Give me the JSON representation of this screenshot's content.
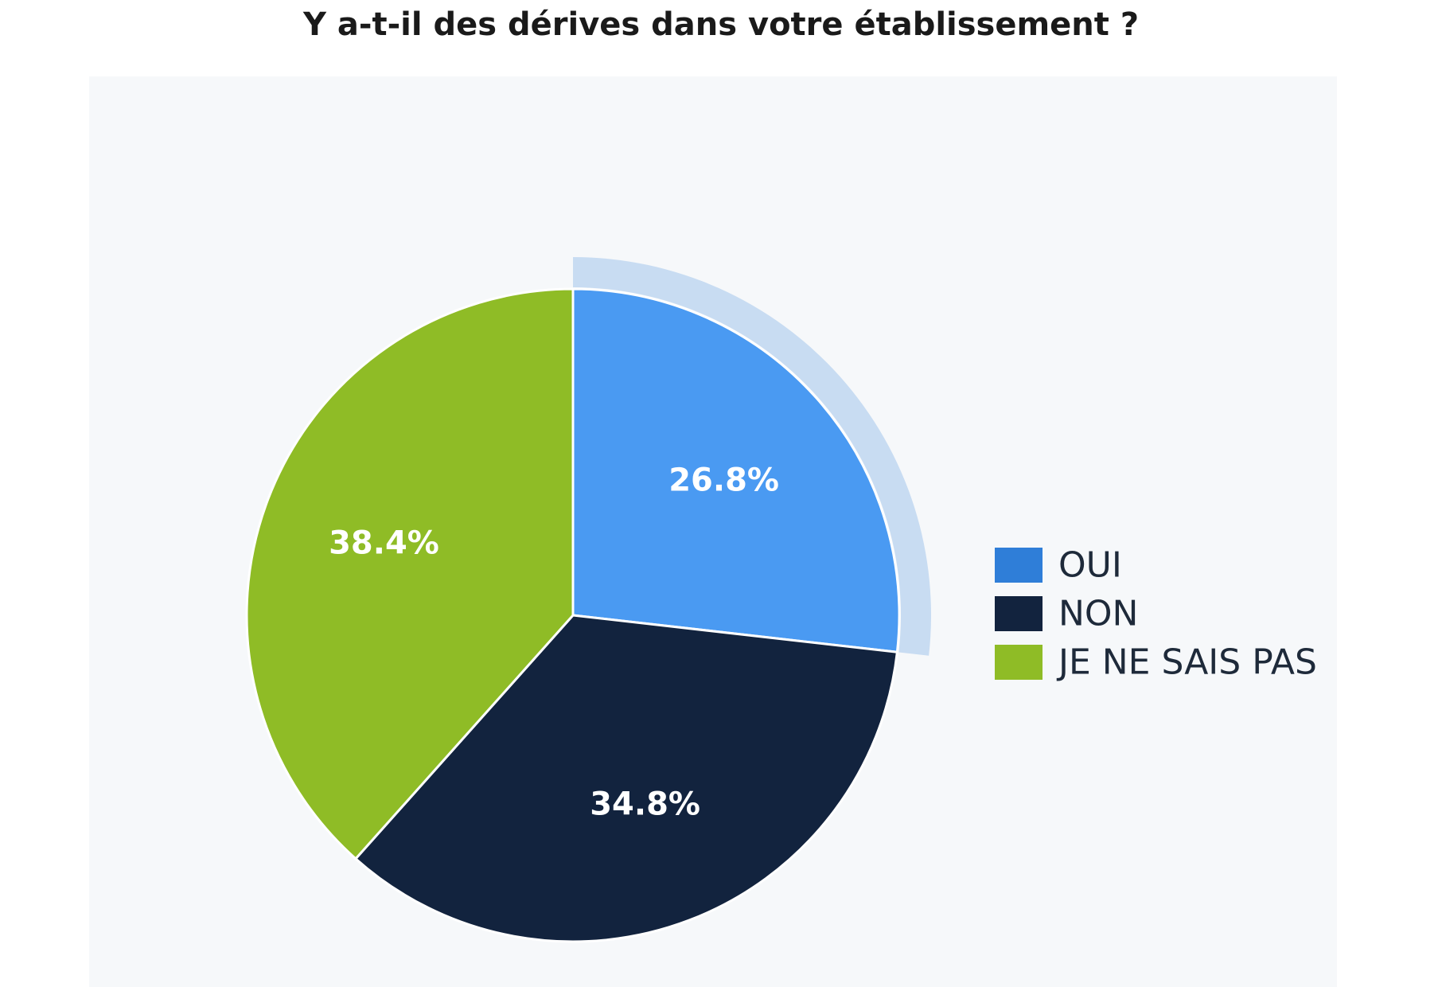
{
  "chart_data": {
    "type": "pie",
    "title": "Y a-t-il des dérives dans votre établissement ?",
    "slices": [
      {
        "label": "OUI",
        "value": 26.8,
        "display": "26.8%",
        "color": "#4a9af2",
        "legend_color": "#2f7ed8",
        "highlighted": true,
        "highlight_color": "#c8dcf2"
      },
      {
        "label": "NON",
        "value": 34.8,
        "display": "34.8%",
        "color": "#12233e",
        "legend_color": "#12233e",
        "highlighted": false
      },
      {
        "label": "JE NE SAIS PAS",
        "value": 38.4,
        "display": "38.4%",
        "color": "#8fbc26",
        "legend_color": "#8fbc26",
        "highlighted": false
      }
    ],
    "start_angle": "12 o'clock",
    "direction": "clockwise",
    "legend_position": "right",
    "background_color": "#f6f8fa"
  }
}
